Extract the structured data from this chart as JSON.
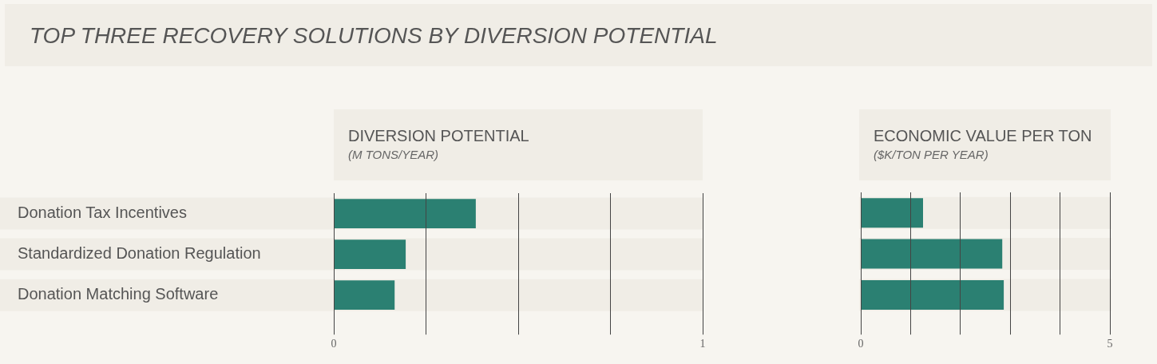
{
  "chart_data": [
    {
      "type": "other",
      "title": "TOP THREE RECOVERY SOLUTIONS BY DIVERSION POTENTIAL"
    },
    {
      "type": "bar",
      "orientation": "horizontal",
      "title": "DIVERSION POTENTIAL",
      "subtitle": "(M TONS/YEAR)",
      "categories": [
        "Donation Tax Incentives",
        "Standardized Donation Regulation",
        "Donation Matching Software"
      ],
      "values": [
        0.385,
        0.195,
        0.165
      ],
      "color": "#2b8072",
      "xlim": [
        0,
        1
      ],
      "xticks": [
        0,
        {
          "value": 0.25,
          "label": null
        },
        {
          "value": 0.5,
          "label": null
        },
        {
          "value": 0.75,
          "label": null
        },
        1
      ],
      "grid": "x"
    },
    {
      "type": "bar",
      "orientation": "horizontal",
      "title": "ECONOMIC VALUE PER TON",
      "subtitle": "($K/TON PER YEAR)",
      "categories": [
        null,
        null,
        null
      ],
      "values": [
        1.25,
        2.84,
        2.87
      ],
      "color": "#2b8072",
      "xlim": [
        0,
        5
      ],
      "xticks": [
        0,
        {
          "value": 1,
          "label": null
        },
        {
          "value": 2,
          "label": null
        },
        {
          "value": 3,
          "label": null
        },
        {
          "value": 4,
          "label": null
        },
        5
      ],
      "grid": "x",
      "tick_labels": "x"
    }
  ]
}
